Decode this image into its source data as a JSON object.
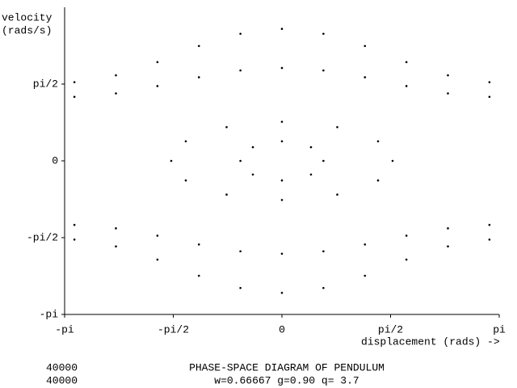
{
  "chart_data": {
    "type": "scatter",
    "title": "PHASE-SPACE DIAGRAM OF PENDULUM",
    "subtitle": "w=0.66667 g=0.90 q=  3.7",
    "counters": [
      "40000",
      "40000"
    ],
    "ylabel": [
      "velocity",
      "(rads/s)"
    ],
    "xlabel": "displacement (rads) ->",
    "xlim": [
      -3.1416,
      3.1416
    ],
    "ylim": [
      -3.1416,
      3.1416
    ],
    "xticks": [
      {
        "value": -3.1416,
        "label": "-pi"
      },
      {
        "value": -1.5708,
        "label": "-pi/2"
      },
      0,
      {
        "value": 1.5708,
        "label": "pi/2"
      },
      {
        "value": 3.1416,
        "label": "pi"
      }
    ],
    "yticks": [
      {
        "value": -3.1416,
        "label": "-pi"
      },
      {
        "value": -1.5708,
        "label": "-pi/2"
      },
      0,
      {
        "value": 1.5708,
        "label": "pi/2"
      }
    ],
    "color": "#000000",
    "x": [
      -3,
      -2.4,
      -1.8,
      -1.2,
      -0.6,
      0,
      0.6,
      1.2,
      1.8,
      2.4,
      3,
      -3,
      -2.4,
      -1.8,
      -1.2,
      -0.6,
      0,
      0.6,
      1.2,
      1.8,
      2.4,
      3,
      -3,
      -2.4,
      -1.8,
      -1.2,
      -0.6,
      0,
      0.6,
      1.2,
      1.8,
      2.4,
      3,
      -3,
      -2.4,
      -1.8,
      -1.2,
      -0.6,
      0,
      0.6,
      1.2,
      1.8,
      2.4,
      3,
      1.6,
      1.39,
      0.8,
      0,
      -0.8,
      -1.39,
      -1.6,
      -1.39,
      -0.8,
      0,
      0.8,
      1.39,
      0.6,
      0.42,
      0,
      -0.42,
      -0.6,
      -0.42,
      0,
      0.42
    ],
    "values": [
      1.61,
      1.75,
      2.02,
      2.35,
      2.6,
      2.7,
      2.6,
      2.35,
      2.02,
      1.75,
      1.61,
      -1.61,
      -1.75,
      -2.02,
      -2.35,
      -2.6,
      -2.7,
      -2.6,
      -2.35,
      -2.02,
      -1.75,
      -1.61,
      1.31,
      1.38,
      1.53,
      1.71,
      1.85,
      1.9,
      1.85,
      1.71,
      1.53,
      1.38,
      1.31,
      -1.31,
      -1.38,
      -1.53,
      -1.71,
      -1.85,
      -1.9,
      -1.85,
      -1.71,
      -1.53,
      -1.38,
      -1.31,
      0,
      0.4,
      0.69,
      0.8,
      0.69,
      0.4,
      0,
      -0.4,
      -0.69,
      -0.8,
      -0.69,
      -0.4,
      0,
      0.28,
      0.4,
      0.28,
      0,
      -0.28,
      -0.4,
      -0.28
    ]
  }
}
